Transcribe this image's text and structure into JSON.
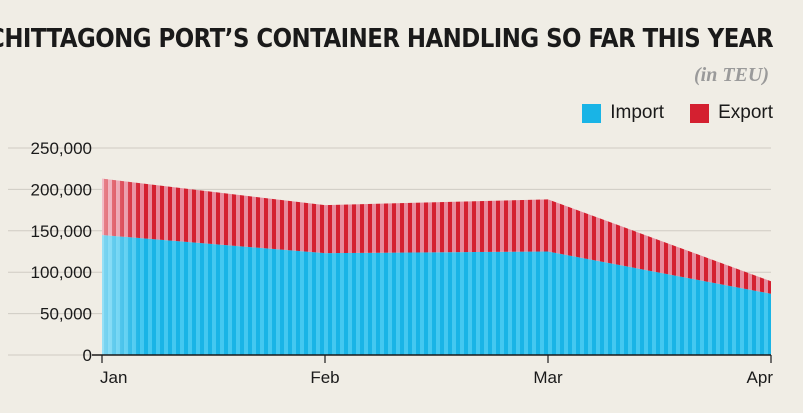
{
  "title": "CHITTAGONG PORT’S CONTAINER HANDLING SO FAR THIS YEAR",
  "subtitle": "(in TEU)",
  "legend": [
    {
      "name": "Import",
      "color": "#19b4e6"
    },
    {
      "name": "Export",
      "color": "#d42030"
    }
  ],
  "chart_data": {
    "type": "area",
    "stacked": true,
    "x": [
      "Jan",
      "Feb",
      "Mar",
      "Apr"
    ],
    "xlabel": "",
    "ylabel": "",
    "ylim": [
      0,
      250000
    ],
    "yticks": [
      0,
      50000,
      100000,
      150000,
      200000,
      250000
    ],
    "ytick_labels": [
      "0",
      "50,000",
      "100,000",
      "150,000",
      "200,000",
      "250,000"
    ],
    "grid": true,
    "legend_position": "top-right",
    "series": [
      {
        "name": "Import",
        "color": "#19b4e6",
        "values": [
          145000,
          123000,
          125000,
          74000
        ]
      },
      {
        "name": "Export",
        "color": "#d42030",
        "values": [
          68000,
          58000,
          63000,
          15000
        ]
      }
    ]
  }
}
